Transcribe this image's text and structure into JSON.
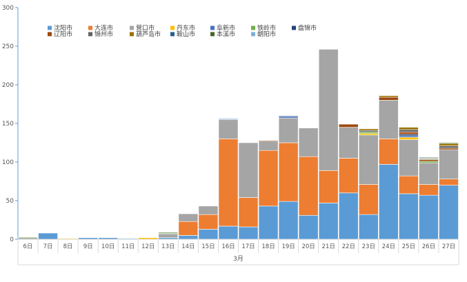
{
  "chart_data": {
    "type": "bar",
    "stacked": true,
    "xgroup_label": "3月",
    "categories": [
      "6日",
      "7日",
      "8日",
      "9日",
      "10日",
      "11日",
      "12日",
      "13日",
      "14日",
      "15日",
      "16日",
      "17日",
      "18日",
      "19日",
      "20日",
      "21日",
      "22日",
      "23日",
      "24日",
      "25日",
      "26日",
      "27日"
    ],
    "ylim": [
      0,
      300
    ],
    "yticks": [
      0,
      50,
      100,
      150,
      200,
      250,
      300
    ],
    "grid": false,
    "legend_position": "top-left",
    "series": [
      {
        "name": "沈阳市",
        "color": "#5b9bd5",
        "values": [
          0,
          8,
          0,
          2,
          2,
          1,
          0,
          2,
          5,
          13,
          17,
          16,
          43,
          49,
          31,
          47,
          60,
          32,
          97,
          59,
          57,
          70
        ]
      },
      {
        "name": "大连市",
        "color": "#ed7d31",
        "values": [
          0,
          0,
          0,
          0,
          0,
          0,
          0,
          0,
          18,
          19,
          113,
          38,
          72,
          76,
          76,
          42,
          45,
          39,
          33,
          23,
          14,
          8
        ]
      },
      {
        "name": "营口市",
        "color": "#a5a5a5",
        "values": [
          2,
          0,
          0,
          0,
          0,
          0,
          0,
          5,
          10,
          11,
          25,
          71,
          12,
          32,
          37,
          157,
          40,
          64,
          50,
          47,
          28,
          38
        ]
      },
      {
        "name": "丹东市",
        "color": "#ffc000",
        "values": [
          0,
          0,
          1,
          0,
          0,
          0,
          2,
          0,
          0,
          0,
          0,
          0,
          0,
          0,
          0,
          0,
          0,
          2,
          0,
          3,
          0,
          0
        ]
      },
      {
        "name": "阜新市",
        "color": "#4472c4",
        "values": [
          0,
          0,
          0,
          0,
          0,
          0,
          0,
          0,
          0,
          0,
          1,
          0,
          0,
          2,
          0,
          0,
          0,
          0,
          0,
          2,
          0,
          0
        ]
      },
      {
        "name": "铁岭市",
        "color": "#70ad47",
        "values": [
          1,
          0,
          0,
          0,
          0,
          0,
          0,
          1,
          0,
          0,
          0,
          0,
          0,
          0,
          0,
          0,
          0,
          2,
          0,
          0,
          2,
          0
        ]
      },
      {
        "name": "盘锦市",
        "color": "#264478",
        "values": [
          0,
          0,
          0,
          0,
          0,
          0,
          0,
          0,
          0,
          0,
          0,
          0,
          0,
          1,
          0,
          0,
          0,
          0,
          0,
          2,
          0,
          0
        ]
      },
      {
        "name": "辽阳市",
        "color": "#9e480e",
        "values": [
          0,
          0,
          0,
          0,
          0,
          0,
          0,
          0,
          0,
          0,
          0,
          0,
          1,
          0,
          0,
          0,
          4,
          0,
          4,
          3,
          2,
          2
        ]
      },
      {
        "name": "锦州市",
        "color": "#636363",
        "values": [
          0,
          0,
          0,
          0,
          0,
          0,
          0,
          0,
          0,
          0,
          0,
          0,
          0,
          0,
          0,
          0,
          0,
          2,
          0,
          3,
          0,
          3
        ]
      },
      {
        "name": "葫芦岛市",
        "color": "#997300",
        "values": [
          0,
          0,
          0,
          0,
          0,
          0,
          0,
          0,
          0,
          0,
          0,
          0,
          0,
          0,
          0,
          0,
          0,
          2,
          2,
          3,
          1,
          3
        ]
      },
      {
        "name": "鞍山市",
        "color": "#255e91",
        "values": [
          0,
          0,
          0,
          0,
          0,
          0,
          0,
          0,
          0,
          0,
          0,
          0,
          0,
          0,
          0,
          0,
          0,
          0,
          0,
          0,
          1,
          0
        ]
      },
      {
        "name": "本溪市",
        "color": "#43682b",
        "values": [
          0,
          0,
          0,
          0,
          0,
          0,
          0,
          1,
          0,
          0,
          0,
          0,
          0,
          0,
          0,
          0,
          0,
          0,
          0,
          0,
          1,
          1
        ]
      },
      {
        "name": "朝阳市",
        "color": "#7cafdd",
        "values": [
          0,
          0,
          0,
          0,
          0,
          0,
          0,
          0,
          0,
          0,
          0,
          0,
          0,
          0,
          0,
          0,
          0,
          0,
          0,
          0,
          0,
          0
        ]
      }
    ]
  }
}
